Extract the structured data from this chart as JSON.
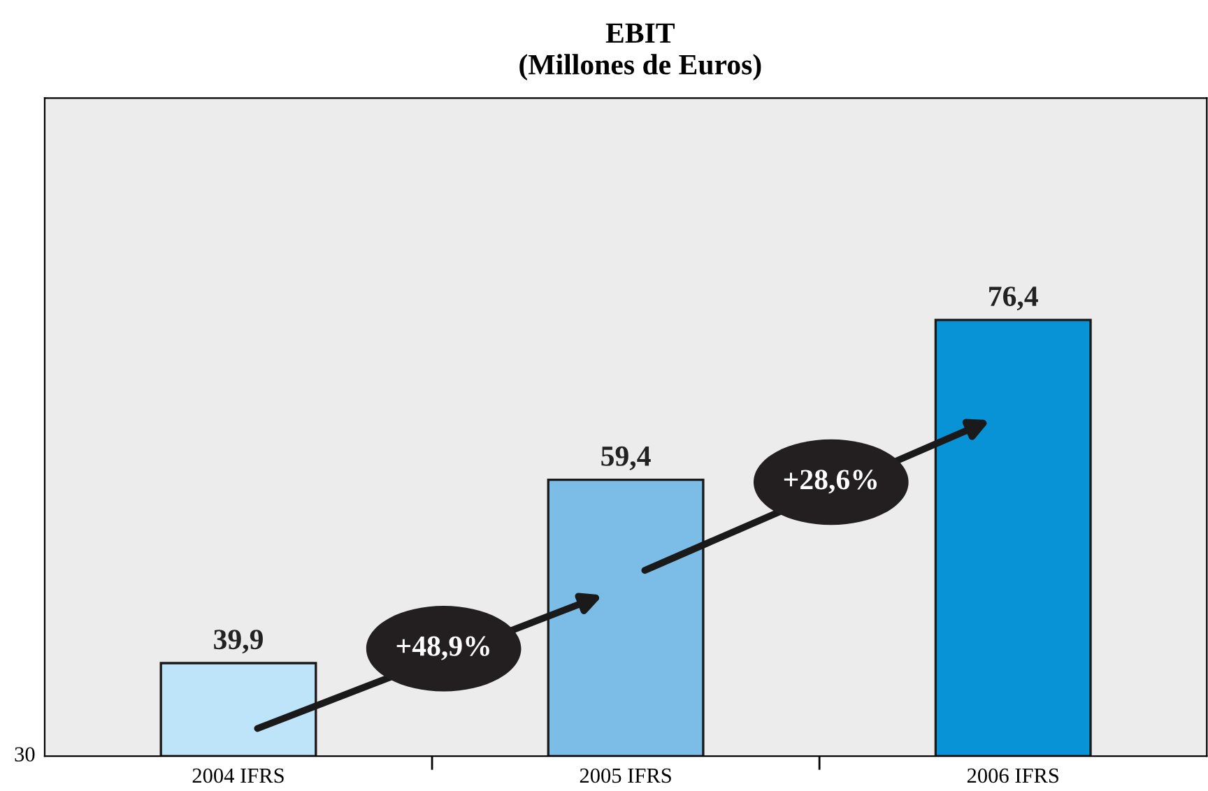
{
  "chart_data": {
    "type": "bar",
    "title": "EBIT",
    "subtitle": "(Millones de Euros)",
    "categories": [
      "2004 IFRS",
      "2005 IFRS",
      "2006 IFRS"
    ],
    "values": [
      39.9,
      59.4,
      76.4
    ],
    "ylim": [
      30,
      100
    ],
    "value_labels": [
      "39,9",
      "59,4",
      "76,4"
    ],
    "colors": [
      "#bde4f8",
      "#7cbde8",
      "#0893d6"
    ],
    "annotations": [
      "+48,9%",
      "+28,6%",
      "30"
    ],
    "grid": false,
    "legend": false
  }
}
